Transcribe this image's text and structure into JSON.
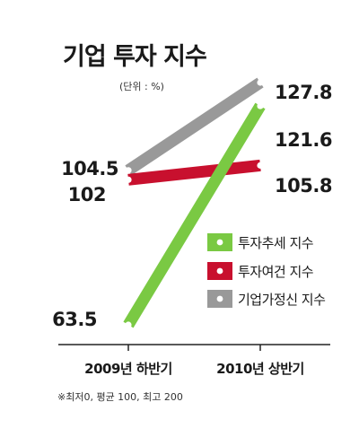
{
  "chart_data": {
    "type": "line",
    "title": "기업 투자 지수",
    "unit": "(단위 : %)",
    "categories": [
      "2009년 하반기",
      "2010년 상반기"
    ],
    "series": [
      {
        "name": "투자추세 지수",
        "values": [
          63.5,
          121.6
        ],
        "labels": [
          "63.5",
          "121.6"
        ],
        "color": "#7ac943"
      },
      {
        "name": "투자여건 지수",
        "values": [
          102,
          105.8
        ],
        "labels": [
          "102",
          "105.8"
        ],
        "color": "#c8102e"
      },
      {
        "name": "기업가정신 지수",
        "values": [
          104.5,
          127.8
        ],
        "labels": [
          "104.5",
          "127.8"
        ],
        "color": "#999999"
      }
    ],
    "note": "※최저0, 평균 100, 최고 200",
    "ylim": [
      40,
      140
    ]
  }
}
